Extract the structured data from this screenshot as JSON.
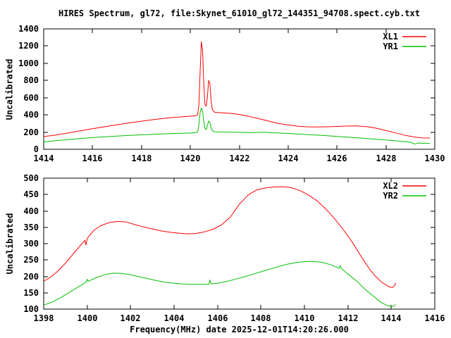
{
  "title": "HIRES Spectrum, gl72, file:Skynet_61010_gl72_144351_94708.spect.cyb.txt",
  "colors": {
    "background": "#ffffff",
    "axis": "#000000",
    "series_red": "#ff0000",
    "series_green": "#00c000"
  },
  "chart_data": [
    {
      "type": "line",
      "panel": "top",
      "ylabel": "Uncalibrated",
      "xlabel": "",
      "xlim": [
        1414,
        1430
      ],
      "ylim": [
        0,
        1400
      ],
      "xticks": [
        1414,
        1416,
        1418,
        1420,
        1422,
        1424,
        1426,
        1428,
        1430
      ],
      "yticks": [
        0,
        200,
        400,
        600,
        800,
        1000,
        1200,
        1400
      ],
      "grid": false,
      "legend_position": "top-right-inside",
      "series": [
        {
          "name": "XL1",
          "color": "#ff0000",
          "points": [
            [
              1414,
              148
            ],
            [
              1414.4,
              162
            ],
            [
              1414.8,
              180
            ],
            [
              1415.2,
              200
            ],
            [
              1415.6,
              220
            ],
            [
              1416,
              240
            ],
            [
              1416.4,
              258
            ],
            [
              1416.8,
              276
            ],
            [
              1417.2,
              294
            ],
            [
              1417.6,
              311
            ],
            [
              1418,
              327
            ],
            [
              1418.4,
              342
            ],
            [
              1418.8,
              356
            ],
            [
              1419.2,
              368
            ],
            [
              1419.6,
              377
            ],
            [
              1420,
              385
            ],
            [
              1420.2,
              390
            ],
            [
              1420.3,
              402
            ],
            [
              1420.35,
              520
            ],
            [
              1420.4,
              900
            ],
            [
              1420.45,
              1250
            ],
            [
              1420.5,
              1150
            ],
            [
              1420.55,
              750
            ],
            [
              1420.6,
              520
            ],
            [
              1420.65,
              500
            ],
            [
              1420.7,
              620
            ],
            [
              1420.75,
              800
            ],
            [
              1420.8,
              760
            ],
            [
              1420.85,
              560
            ],
            [
              1420.9,
              460
            ],
            [
              1421,
              430
            ],
            [
              1421.3,
              424
            ],
            [
              1421.6,
              418
            ],
            [
              1422,
              405
            ],
            [
              1422.4,
              382
            ],
            [
              1422.8,
              356
            ],
            [
              1423.2,
              328
            ],
            [
              1423.6,
              300
            ],
            [
              1424,
              283
            ],
            [
              1424.4,
              268
            ],
            [
              1424.8,
              261
            ],
            [
              1425.2,
              260
            ],
            [
              1425.6,
              262
            ],
            [
              1426,
              266
            ],
            [
              1426.4,
              270
            ],
            [
              1426.8,
              272
            ],
            [
              1427.2,
              264
            ],
            [
              1427.6,
              246
            ],
            [
              1428,
              218
            ],
            [
              1428.4,
              190
            ],
            [
              1428.8,
              162
            ],
            [
              1429.2,
              142
            ],
            [
              1429.5,
              132
            ],
            [
              1429.8,
              131
            ]
          ]
        },
        {
          "name": "YR1",
          "color": "#00c000",
          "points": [
            [
              1414,
              85
            ],
            [
              1414.5,
              100
            ],
            [
              1415,
              113
            ],
            [
              1415.5,
              125
            ],
            [
              1416,
              136
            ],
            [
              1416.5,
              146
            ],
            [
              1417,
              154
            ],
            [
              1417.5,
              161
            ],
            [
              1418,
              168
            ],
            [
              1418.5,
              174
            ],
            [
              1419,
              180
            ],
            [
              1419.5,
              185
            ],
            [
              1420,
              189
            ],
            [
              1420.2,
              193
            ],
            [
              1420.3,
              202
            ],
            [
              1420.35,
              290
            ],
            [
              1420.4,
              430
            ],
            [
              1420.45,
              480
            ],
            [
              1420.5,
              440
            ],
            [
              1420.55,
              320
            ],
            [
              1420.6,
              242
            ],
            [
              1420.65,
              228
            ],
            [
              1420.7,
              280
            ],
            [
              1420.75,
              330
            ],
            [
              1420.8,
              308
            ],
            [
              1420.85,
              248
            ],
            [
              1420.9,
              215
            ],
            [
              1421,
              203
            ],
            [
              1421.5,
              200
            ],
            [
              1422,
              197
            ],
            [
              1422.5,
              193
            ],
            [
              1423,
              198
            ],
            [
              1423.5,
              190
            ],
            [
              1424,
              184
            ],
            [
              1424.5,
              176
            ],
            [
              1425,
              168
            ],
            [
              1425.5,
              160
            ],
            [
              1426,
              150
            ],
            [
              1426.5,
              140
            ],
            [
              1427,
              130
            ],
            [
              1427.5,
              119
            ],
            [
              1428,
              108
            ],
            [
              1428.5,
              96
            ],
            [
              1429,
              82
            ],
            [
              1429.2,
              60
            ],
            [
              1429.3,
              72
            ],
            [
              1429.5,
              70
            ],
            [
              1429.8,
              68
            ]
          ]
        }
      ]
    },
    {
      "type": "line",
      "panel": "bottom",
      "ylabel": "Uncalibrated",
      "xlabel": "Frequency(MHz) date 2025-12-01T14:20:26.000",
      "xlim": [
        1398,
        1416
      ],
      "ylim": [
        100,
        500
      ],
      "xticks": [
        1398,
        1400,
        1402,
        1404,
        1406,
        1408,
        1410,
        1412,
        1414,
        1416
      ],
      "yticks": [
        100,
        150,
        200,
        250,
        300,
        350,
        400,
        450,
        500
      ],
      "grid": false,
      "legend_position": "top-right-inside",
      "series": [
        {
          "name": "XL2",
          "color": "#ff0000",
          "points": [
            [
              1398,
              185
            ],
            [
              1398.3,
              197
            ],
            [
              1398.6,
              213
            ],
            [
              1399,
              240
            ],
            [
              1399.4,
              272
            ],
            [
              1399.8,
              303
            ],
            [
              1399.9,
              310
            ],
            [
              1399.95,
              296
            ],
            [
              1400,
              316
            ],
            [
              1400.3,
              340
            ],
            [
              1400.6,
              354
            ],
            [
              1401,
              364
            ],
            [
              1401.4,
              368
            ],
            [
              1401.8,
              366
            ],
            [
              1402.2,
              358
            ],
            [
              1402.6,
              351
            ],
            [
              1403,
              345
            ],
            [
              1403.4,
              339
            ],
            [
              1403.8,
              335
            ],
            [
              1404.2,
              332
            ],
            [
              1404.6,
              330
            ],
            [
              1405,
              331
            ],
            [
              1405.4,
              336
            ],
            [
              1405.8,
              344
            ],
            [
              1406.2,
              358
            ],
            [
              1406.6,
              382
            ],
            [
              1407,
              420
            ],
            [
              1407.4,
              448
            ],
            [
              1407.8,
              464
            ],
            [
              1408.2,
              470
            ],
            [
              1408.6,
              473
            ],
            [
              1409,
              474
            ],
            [
              1409.4,
              471
            ],
            [
              1409.8,
              462
            ],
            [
              1410.2,
              448
            ],
            [
              1410.6,
              430
            ],
            [
              1411,
              405
            ],
            [
              1411.4,
              375
            ],
            [
              1411.8,
              342
            ],
            [
              1412.2,
              305
            ],
            [
              1412.6,
              262
            ],
            [
              1413,
              222
            ],
            [
              1413.3,
              198
            ],
            [
              1413.6,
              180
            ],
            [
              1413.9,
              168
            ],
            [
              1414.05,
              166
            ],
            [
              1414.15,
              172
            ],
            [
              1414.2,
              180
            ]
          ]
        },
        {
          "name": "YR2",
          "color": "#00c000",
          "points": [
            [
              1398,
              112
            ],
            [
              1398.4,
              122
            ],
            [
              1398.8,
              136
            ],
            [
              1399.2,
              152
            ],
            [
              1399.6,
              168
            ],
            [
              1399.95,
              182
            ],
            [
              1400,
              191
            ],
            [
              1400.05,
              185
            ],
            [
              1400.4,
              196
            ],
            [
              1400.8,
              205
            ],
            [
              1401.2,
              210
            ],
            [
              1401.6,
              209
            ],
            [
              1402,
              205
            ],
            [
              1402.4,
              199
            ],
            [
              1402.8,
              193
            ],
            [
              1403.2,
              187
            ],
            [
              1403.6,
              182
            ],
            [
              1404,
              179
            ],
            [
              1404.4,
              177
            ],
            [
              1404.8,
              176
            ],
            [
              1405.2,
              176
            ],
            [
              1405.6,
              176
            ],
            [
              1405.65,
              189
            ],
            [
              1405.7,
              177
            ],
            [
              1406,
              179
            ],
            [
              1406.4,
              184
            ],
            [
              1406.8,
              191
            ],
            [
              1407.2,
              198
            ],
            [
              1407.6,
              206
            ],
            [
              1408,
              214
            ],
            [
              1408.4,
              222
            ],
            [
              1408.8,
              230
            ],
            [
              1409.2,
              237
            ],
            [
              1409.6,
              242
            ],
            [
              1410,
              245
            ],
            [
              1410.4,
              246
            ],
            [
              1410.8,
              243
            ],
            [
              1411.2,
              236
            ],
            [
              1411.6,
              225
            ],
            [
              1411.65,
              233
            ],
            [
              1411.7,
              224
            ],
            [
              1412,
              207
            ],
            [
              1412.4,
              186
            ],
            [
              1412.8,
              160
            ],
            [
              1413.2,
              138
            ],
            [
              1413.5,
              122
            ],
            [
              1413.8,
              111
            ],
            [
              1414.05,
              108
            ],
            [
              1414.15,
              111
            ],
            [
              1414.2,
              114
            ]
          ]
        }
      ]
    }
  ]
}
